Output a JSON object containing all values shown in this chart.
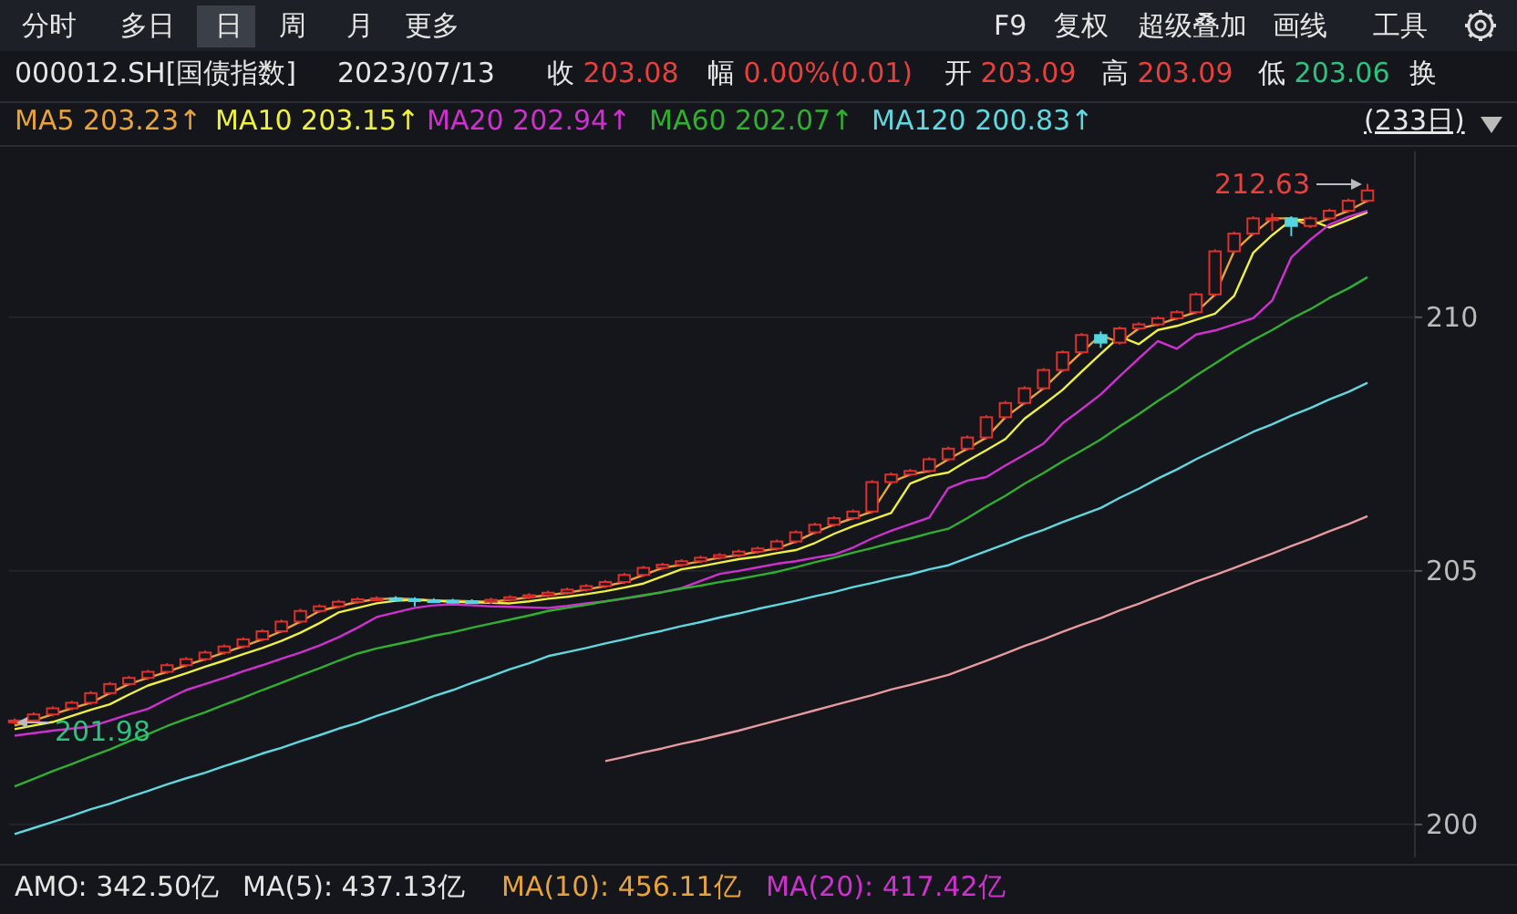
{
  "chart_data": {
    "type": "candlestick",
    "title": "000012.SH[国债指数]",
    "categories": [
      null,
      null,
      null,
      null,
      null,
      null,
      null,
      null,
      null,
      null,
      null,
      null,
      null,
      null,
      null,
      null,
      null,
      null,
      null,
      null,
      null,
      null,
      null,
      null,
      null,
      null,
      null,
      null,
      null,
      null,
      null,
      null,
      null,
      null,
      null,
      null,
      null,
      null,
      null,
      null,
      null,
      null,
      null,
      null,
      null,
      null,
      null,
      null,
      null,
      null,
      null,
      null,
      null,
      null,
      null,
      null,
      null,
      null,
      null,
      null,
      null,
      null,
      null,
      null,
      null,
      null,
      null,
      null,
      null,
      null,
      null,
      null
    ],
    "ohlc": [
      [
        202.03,
        202.09,
        201.98,
        202.05
      ],
      [
        202.05,
        202.21,
        202.01,
        202.17
      ],
      [
        202.17,
        202.33,
        202.13,
        202.29
      ],
      [
        202.29,
        202.44,
        202.25,
        202.4
      ],
      [
        202.4,
        202.63,
        202.36,
        202.59
      ],
      [
        202.59,
        202.81,
        202.55,
        202.77
      ],
      [
        202.77,
        202.93,
        202.73,
        202.89
      ],
      [
        202.89,
        203.05,
        202.85,
        203.01
      ],
      [
        203.01,
        203.18,
        202.97,
        203.14
      ],
      [
        203.14,
        203.3,
        203.1,
        203.26
      ],
      [
        203.26,
        203.43,
        203.22,
        203.39
      ],
      [
        203.39,
        203.55,
        203.35,
        203.51
      ],
      [
        203.51,
        203.69,
        203.47,
        203.65
      ],
      [
        203.65,
        203.85,
        203.61,
        203.81
      ],
      [
        203.81,
        204.04,
        203.77,
        204.0
      ],
      [
        204.0,
        204.25,
        203.96,
        204.21
      ],
      [
        204.21,
        204.34,
        204.17,
        204.3
      ],
      [
        204.3,
        204.43,
        204.26,
        204.39
      ],
      [
        204.39,
        204.48,
        204.35,
        204.44
      ],
      [
        204.44,
        204.5,
        204.4,
        204.46
      ],
      [
        204.46,
        204.5,
        204.4,
        204.44
      ],
      [
        204.44,
        204.48,
        204.3,
        204.42
      ],
      [
        204.42,
        204.46,
        204.37,
        204.41
      ],
      [
        204.41,
        204.45,
        204.36,
        204.4
      ],
      [
        204.4,
        204.44,
        204.35,
        204.39
      ],
      [
        204.39,
        204.47,
        204.35,
        204.43
      ],
      [
        204.43,
        204.52,
        204.39,
        204.48
      ],
      [
        204.48,
        204.56,
        204.44,
        204.52
      ],
      [
        204.52,
        204.61,
        204.48,
        204.57
      ],
      [
        204.57,
        204.67,
        204.53,
        204.63
      ],
      [
        204.63,
        204.74,
        204.59,
        204.7
      ],
      [
        204.7,
        204.82,
        204.66,
        204.78
      ],
      [
        204.78,
        204.96,
        204.74,
        204.92
      ],
      [
        204.92,
        205.1,
        204.88,
        205.06
      ],
      [
        205.06,
        205.16,
        205.02,
        205.12
      ],
      [
        205.12,
        205.23,
        205.08,
        205.19
      ],
      [
        205.19,
        205.3,
        205.15,
        205.26
      ],
      [
        205.26,
        205.35,
        205.22,
        205.31
      ],
      [
        205.31,
        205.42,
        205.27,
        205.38
      ],
      [
        205.38,
        205.48,
        205.34,
        205.44
      ],
      [
        205.44,
        205.62,
        205.4,
        205.58
      ],
      [
        205.58,
        205.8,
        205.54,
        205.76
      ],
      [
        205.76,
        205.95,
        205.72,
        205.91
      ],
      [
        205.91,
        206.08,
        205.87,
        206.04
      ],
      [
        206.04,
        206.21,
        206.0,
        206.17
      ],
      [
        206.17,
        206.79,
        206.13,
        206.75
      ],
      [
        206.75,
        206.94,
        206.71,
        206.9
      ],
      [
        206.9,
        207.01,
        206.86,
        206.97
      ],
      [
        206.97,
        207.24,
        206.93,
        207.2
      ],
      [
        207.2,
        207.45,
        207.16,
        207.41
      ],
      [
        207.41,
        207.67,
        207.37,
        207.63
      ],
      [
        207.63,
        208.07,
        207.59,
        208.03
      ],
      [
        208.03,
        208.35,
        207.99,
        208.31
      ],
      [
        208.31,
        208.64,
        208.27,
        208.6
      ],
      [
        208.6,
        209.0,
        208.56,
        208.96
      ],
      [
        208.96,
        209.35,
        208.92,
        209.31
      ],
      [
        209.31,
        209.69,
        209.27,
        209.65
      ],
      [
        209.65,
        209.72,
        209.4,
        209.5
      ],
      [
        209.5,
        209.82,
        209.46,
        209.78
      ],
      [
        209.78,
        209.9,
        209.74,
        209.86
      ],
      [
        209.86,
        210.02,
        209.82,
        209.98
      ],
      [
        209.98,
        210.14,
        209.94,
        210.1
      ],
      [
        210.1,
        210.49,
        210.06,
        210.45
      ],
      [
        210.45,
        211.34,
        210.41,
        211.3
      ],
      [
        211.3,
        211.69,
        211.26,
        211.65
      ],
      [
        211.65,
        211.99,
        211.61,
        211.95
      ],
      [
        211.95,
        212.05,
        211.7,
        211.95
      ],
      [
        211.95,
        211.99,
        211.6,
        211.8
      ],
      [
        211.8,
        211.99,
        211.76,
        211.95
      ],
      [
        211.95,
        212.14,
        211.91,
        212.1
      ],
      [
        212.1,
        212.34,
        212.06,
        212.3
      ],
      [
        212.3,
        212.63,
        212.26,
        212.5
      ]
    ],
    "series": [
      {
        "type": "line",
        "name": "MA5 203.23↑",
        "color": "#e8a33c",
        "values": [
          201.95,
          202.05,
          202.17,
          202.29,
          202.4,
          202.59,
          202.77,
          202.89,
          203.01,
          203.14,
          203.26,
          203.39,
          203.51,
          203.65,
          203.81,
          204.0,
          204.21,
          204.3,
          204.39,
          204.44,
          204.46,
          204.44,
          204.42,
          204.41,
          204.4,
          204.39,
          204.43,
          204.48,
          204.52,
          204.57,
          204.63,
          204.7,
          204.78,
          204.92,
          205.06,
          205.12,
          205.19,
          205.26,
          205.31,
          205.38,
          205.44,
          205.58,
          205.76,
          205.91,
          206.04,
          206.17,
          206.75,
          206.9,
          206.97,
          207.2,
          207.41,
          207.63,
          208.03,
          208.31,
          208.6,
          208.96,
          209.31,
          209.65,
          209.5,
          209.78,
          209.86,
          209.98,
          210.1,
          210.45,
          211.3,
          211.65,
          211.95,
          211.95,
          211.8,
          211.95,
          212.1,
          212.3
        ]
      },
      {
        "type": "line",
        "name": "MA10 203.15↑",
        "color": "#f0f040",
        "values": [
          201.88,
          201.95,
          202.02,
          202.14,
          202.26,
          202.37,
          202.56,
          202.74,
          202.86,
          202.98,
          203.11,
          203.23,
          203.36,
          203.48,
          203.62,
          203.78,
          203.97,
          204.18,
          204.27,
          204.36,
          204.41,
          204.43,
          204.41,
          204.39,
          204.38,
          204.37,
          204.36,
          204.4,
          204.45,
          204.49,
          204.54,
          204.6,
          204.67,
          204.75,
          204.89,
          205.03,
          205.09,
          205.16,
          205.23,
          205.28,
          205.35,
          205.41,
          205.55,
          205.73,
          205.88,
          206.01,
          206.14,
          206.72,
          206.87,
          206.94,
          207.17,
          207.38,
          207.6,
          208.0,
          208.28,
          208.57,
          208.93,
          209.28,
          209.62,
          209.47,
          209.75,
          209.83,
          209.95,
          210.07,
          210.42,
          211.27,
          211.62,
          211.92,
          211.92,
          211.77,
          211.92,
          212.07
        ]
      },
      {
        "type": "line",
        "name": "MA20 202.94↑",
        "color": "#d030d0",
        "values": [
          201.75,
          201.8,
          201.85,
          201.89,
          201.93,
          202.05,
          202.17,
          202.28,
          202.47,
          202.65,
          202.77,
          202.89,
          203.02,
          203.14,
          203.27,
          203.39,
          203.53,
          203.69,
          203.88,
          204.09,
          204.18,
          204.27,
          204.32,
          204.34,
          204.32,
          204.3,
          204.29,
          204.28,
          204.27,
          204.31,
          204.36,
          204.4,
          204.45,
          204.51,
          204.58,
          204.66,
          204.8,
          204.94,
          205.0,
          205.07,
          205.14,
          205.19,
          205.26,
          205.32,
          205.46,
          205.64,
          205.79,
          205.92,
          206.05,
          206.63,
          206.78,
          206.85,
          207.08,
          207.29,
          207.51,
          207.91,
          208.19,
          208.48,
          208.84,
          209.19,
          209.53,
          209.38,
          209.66,
          209.74,
          209.86,
          209.98,
          210.33,
          211.18,
          211.53,
          211.83,
          211.98,
          212.1
        ]
      },
      {
        "type": "line",
        "name": "MA60 202.07↑",
        "color": "#30b030",
        "values": [
          200.75,
          200.9,
          201.05,
          201.19,
          201.34,
          201.48,
          201.64,
          201.78,
          201.94,
          202.08,
          202.21,
          202.36,
          202.5,
          202.65,
          202.79,
          202.94,
          203.08,
          203.23,
          203.37,
          203.47,
          203.55,
          203.63,
          203.72,
          203.79,
          203.88,
          203.96,
          204.04,
          204.12,
          204.21,
          204.27,
          204.33,
          204.4,
          204.46,
          204.52,
          204.58,
          204.65,
          204.71,
          204.78,
          204.84,
          204.91,
          204.98,
          205.07,
          205.17,
          205.26,
          205.36,
          205.45,
          205.55,
          205.64,
          205.74,
          205.83,
          206.04,
          206.27,
          206.48,
          206.72,
          206.93,
          207.16,
          207.37,
          207.59,
          207.85,
          208.09,
          208.35,
          208.59,
          208.85,
          209.09,
          209.33,
          209.55,
          209.75,
          209.97,
          210.16,
          210.38,
          210.57,
          210.79
        ]
      },
      {
        "type": "line",
        "name": "MA120 200.83↑",
        "color": "#60d8e0",
        "values": [
          199.81,
          199.93,
          200.05,
          200.17,
          200.3,
          200.41,
          200.54,
          200.66,
          200.79,
          200.91,
          201.02,
          201.15,
          201.27,
          201.4,
          201.51,
          201.64,
          201.76,
          201.89,
          202.0,
          202.14,
          202.26,
          202.39,
          202.53,
          202.65,
          202.79,
          202.92,
          203.06,
          203.18,
          203.32,
          203.4,
          203.48,
          203.57,
          203.65,
          203.74,
          203.82,
          203.91,
          203.99,
          204.08,
          204.16,
          204.25,
          204.33,
          204.41,
          204.5,
          204.58,
          204.68,
          204.76,
          204.85,
          204.93,
          205.03,
          205.11,
          205.25,
          205.39,
          205.53,
          205.68,
          205.81,
          205.96,
          206.1,
          206.24,
          206.44,
          206.62,
          206.82,
          207.0,
          207.2,
          207.38,
          207.56,
          207.74,
          207.89,
          208.06,
          208.21,
          208.38,
          208.53,
          208.71
        ]
      },
      {
        "type": "line",
        "color": "#e89aa0",
        "values": [
          null,
          null,
          null,
          null,
          null,
          null,
          null,
          null,
          null,
          null,
          null,
          null,
          null,
          null,
          null,
          null,
          null,
          null,
          null,
          null,
          null,
          null,
          null,
          null,
          null,
          null,
          null,
          null,
          null,
          null,
          null,
          201.25,
          201.33,
          201.42,
          201.5,
          201.59,
          201.67,
          201.76,
          201.85,
          201.95,
          202.05,
          202.15,
          202.25,
          202.35,
          202.45,
          202.55,
          202.66,
          202.75,
          202.85,
          202.95,
          203.09,
          203.23,
          203.37,
          203.52,
          203.65,
          203.8,
          203.94,
          204.07,
          204.22,
          204.35,
          204.5,
          204.64,
          204.79,
          204.92,
          205.06,
          205.2,
          205.34,
          205.49,
          205.63,
          205.78,
          205.92,
          206.08
        ]
      }
    ],
    "ylim": [
      199.35,
      213.27
    ],
    "yticks": [
      200,
      205,
      210
    ],
    "grid": "y",
    "legend": "top left",
    "annotations": [
      "分时",
      "多日",
      "日",
      "周",
      "月",
      "更多",
      "F9",
      "复权",
      "超级叠加",
      "画线",
      "工具",
      "2023/07/13",
      "收 203.08",
      "幅 0.00%(0.01)",
      "开 203.09",
      "高 203.09",
      "低 203.06",
      "换",
      "(233日)",
      "AMO: 342.50亿",
      "MA(5): 437.13亿",
      "MA(10): 456.11亿",
      "MA(20): 417.42亿",
      "212.63",
      "201.98"
    ]
  }
}
